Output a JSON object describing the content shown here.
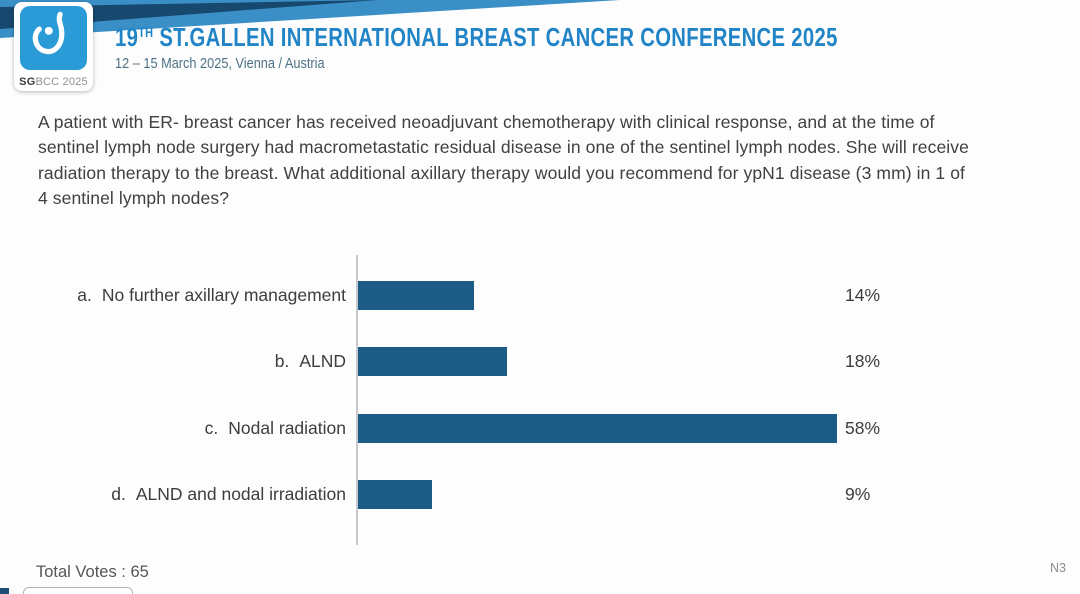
{
  "header": {
    "logo": {
      "icon": "sgbcc-breast-logo-icon",
      "text_bold": "SG",
      "text_rest": "BCC 2025",
      "square_color": "#2b9bd7"
    },
    "title": {
      "prefix": "19",
      "sup": "TH",
      "rest": " ST.GALLEN INTERNATIONAL BREAST CANCER CONFERENCE 2025",
      "color": "#2184c6"
    },
    "subtitle": "12 – 15 March 2025, Vienna / Austria",
    "band_colors": {
      "light": "#3a8fc7",
      "navy": "#17486e"
    }
  },
  "question": "A patient with ER- breast cancer has received neoadjuvant chemotherapy with clinical response, and at the time of sentinel lymph node surgery had macrometastatic residual disease in one of the sentinel lymph nodes.  She will receive radiation therapy to the breast.  What additional axillary therapy would you recommend for ypN1 disease (3 mm) in 1 of 4 sentinel lymph nodes?",
  "chart_data": {
    "type": "bar",
    "orientation": "horizontal",
    "title": "",
    "letters": [
      "a.",
      "b.",
      "c.",
      "d."
    ],
    "categories": [
      "No further axillary management",
      "ALND",
      "Nodal radiation",
      "ALND and nodal irradiation"
    ],
    "values": [
      14,
      18,
      58,
      9
    ],
    "value_labels": [
      "14%",
      "18%",
      "58%",
      "9%"
    ],
    "value_label_position": "right",
    "xlim": [
      0,
      70
    ],
    "grid": false,
    "legend": "none",
    "bar_color": "#1d5c84",
    "axis_color": "#c6cacd"
  },
  "footer": {
    "total_votes_text": "Total Votes : 65",
    "total_votes_value": 65,
    "slide_code": "N3"
  }
}
